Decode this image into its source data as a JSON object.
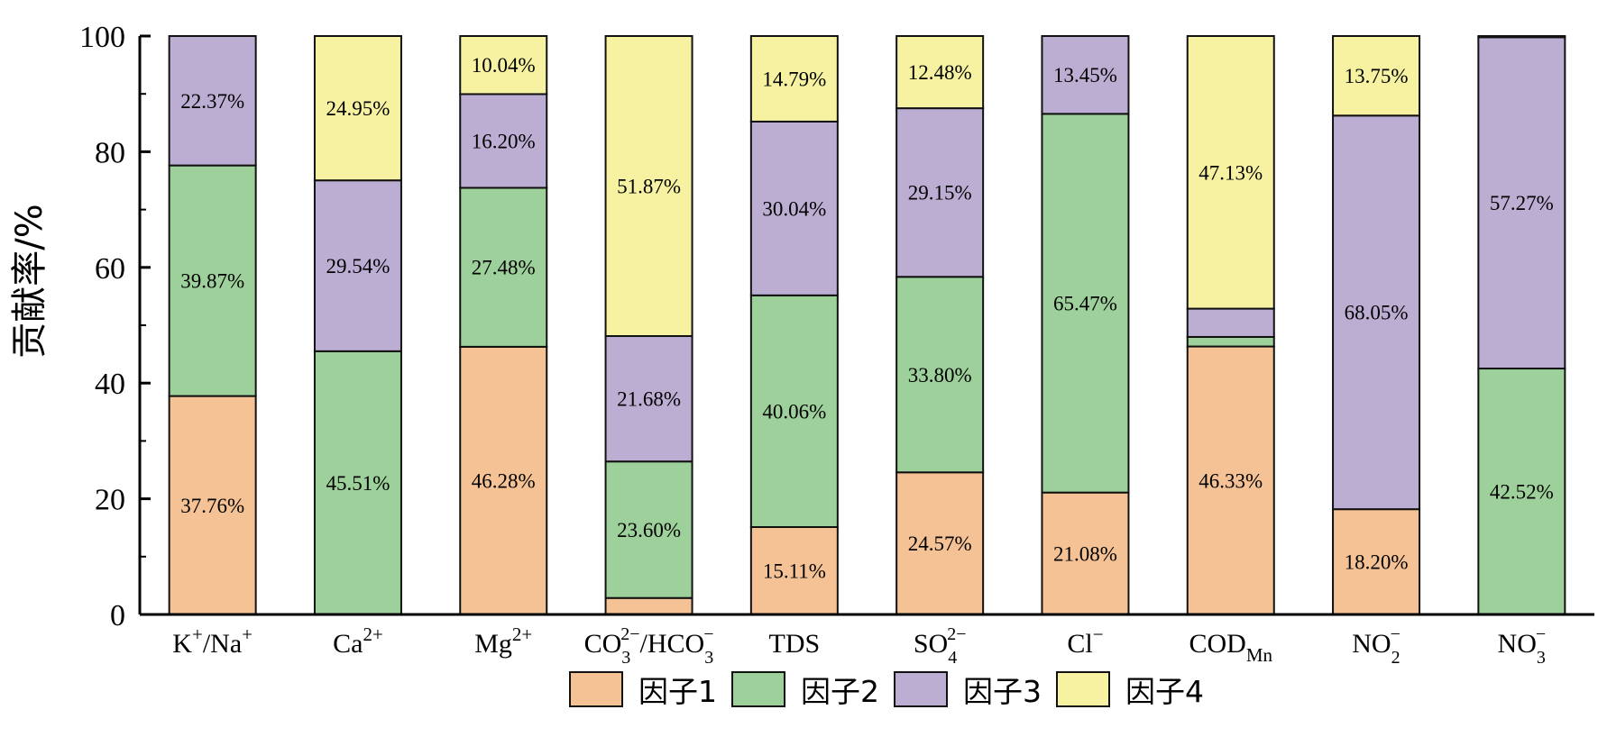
{
  "chart_data": {
    "type": "bar",
    "stacked": true,
    "ylabel": "贡献率/%",
    "ylim": [
      0,
      100
    ],
    "yticks": [
      "0",
      "20",
      "40",
      "60",
      "80",
      "100"
    ],
    "categories": [
      {
        "base": "K",
        "sup": "+",
        "mid": "/Na",
        "sup2": "+"
      },
      {
        "base": "Ca",
        "sup": "2+"
      },
      {
        "base": "Mg",
        "sup": "2+"
      },
      {
        "base": "CO",
        "sub": "3",
        "sup": "2−",
        "mid": "/HCO",
        "sub2": "3",
        "sup2": "−"
      },
      {
        "base": "TDS"
      },
      {
        "base": "SO",
        "sub": "4",
        "sup": "2−"
      },
      {
        "base": "Cl",
        "sup": "−"
      },
      {
        "base": "COD",
        "sub": "Mn"
      },
      {
        "base": "NO",
        "sub": "2",
        "sup": "−"
      },
      {
        "base": "NO",
        "sub": "3",
        "sup": "−"
      }
    ],
    "series": [
      {
        "name": "因子1",
        "color": "#f4c294",
        "values": [
          37.76,
          0,
          46.28,
          2.85,
          15.11,
          24.57,
          21.08,
          46.33,
          18.2,
          0
        ],
        "labels": [
          "37.76%",
          "",
          "46.28%",
          "",
          "15.11%",
          "24.57%",
          "21.08%",
          "46.33%",
          "18.20%",
          ""
        ]
      },
      {
        "name": "因子2",
        "color": "#9dd09a",
        "values": [
          39.87,
          45.51,
          27.48,
          23.6,
          40.06,
          33.8,
          65.47,
          1.65,
          0,
          42.52
        ],
        "labels": [
          "39.87%",
          "45.51%",
          "27.48%",
          "23.60%",
          "40.06%",
          "33.80%",
          "65.47%",
          "",
          "",
          "42.52%"
        ]
      },
      {
        "name": "因子3",
        "color": "#bcaed3",
        "values": [
          22.37,
          29.54,
          16.2,
          21.68,
          30.04,
          29.15,
          13.45,
          4.89,
          68.05,
          57.27
        ],
        "labels": [
          "22.37%",
          "29.54%",
          "16.20%",
          "21.68%",
          "30.04%",
          "29.15%",
          "13.45%",
          "",
          "68.05%",
          "57.27%"
        ]
      },
      {
        "name": "因子4",
        "color": "#f6f2a2",
        "values": [
          0,
          24.95,
          10.04,
          51.87,
          14.79,
          12.48,
          0,
          47.13,
          13.75,
          0.21
        ],
        "labels": [
          "",
          "24.95%",
          "10.04%",
          "51.87%",
          "14.79%",
          "12.48%",
          "",
          "47.13%",
          "13.75%",
          ""
        ]
      }
    ],
    "legend_position": "bottom-center",
    "grid": false
  }
}
